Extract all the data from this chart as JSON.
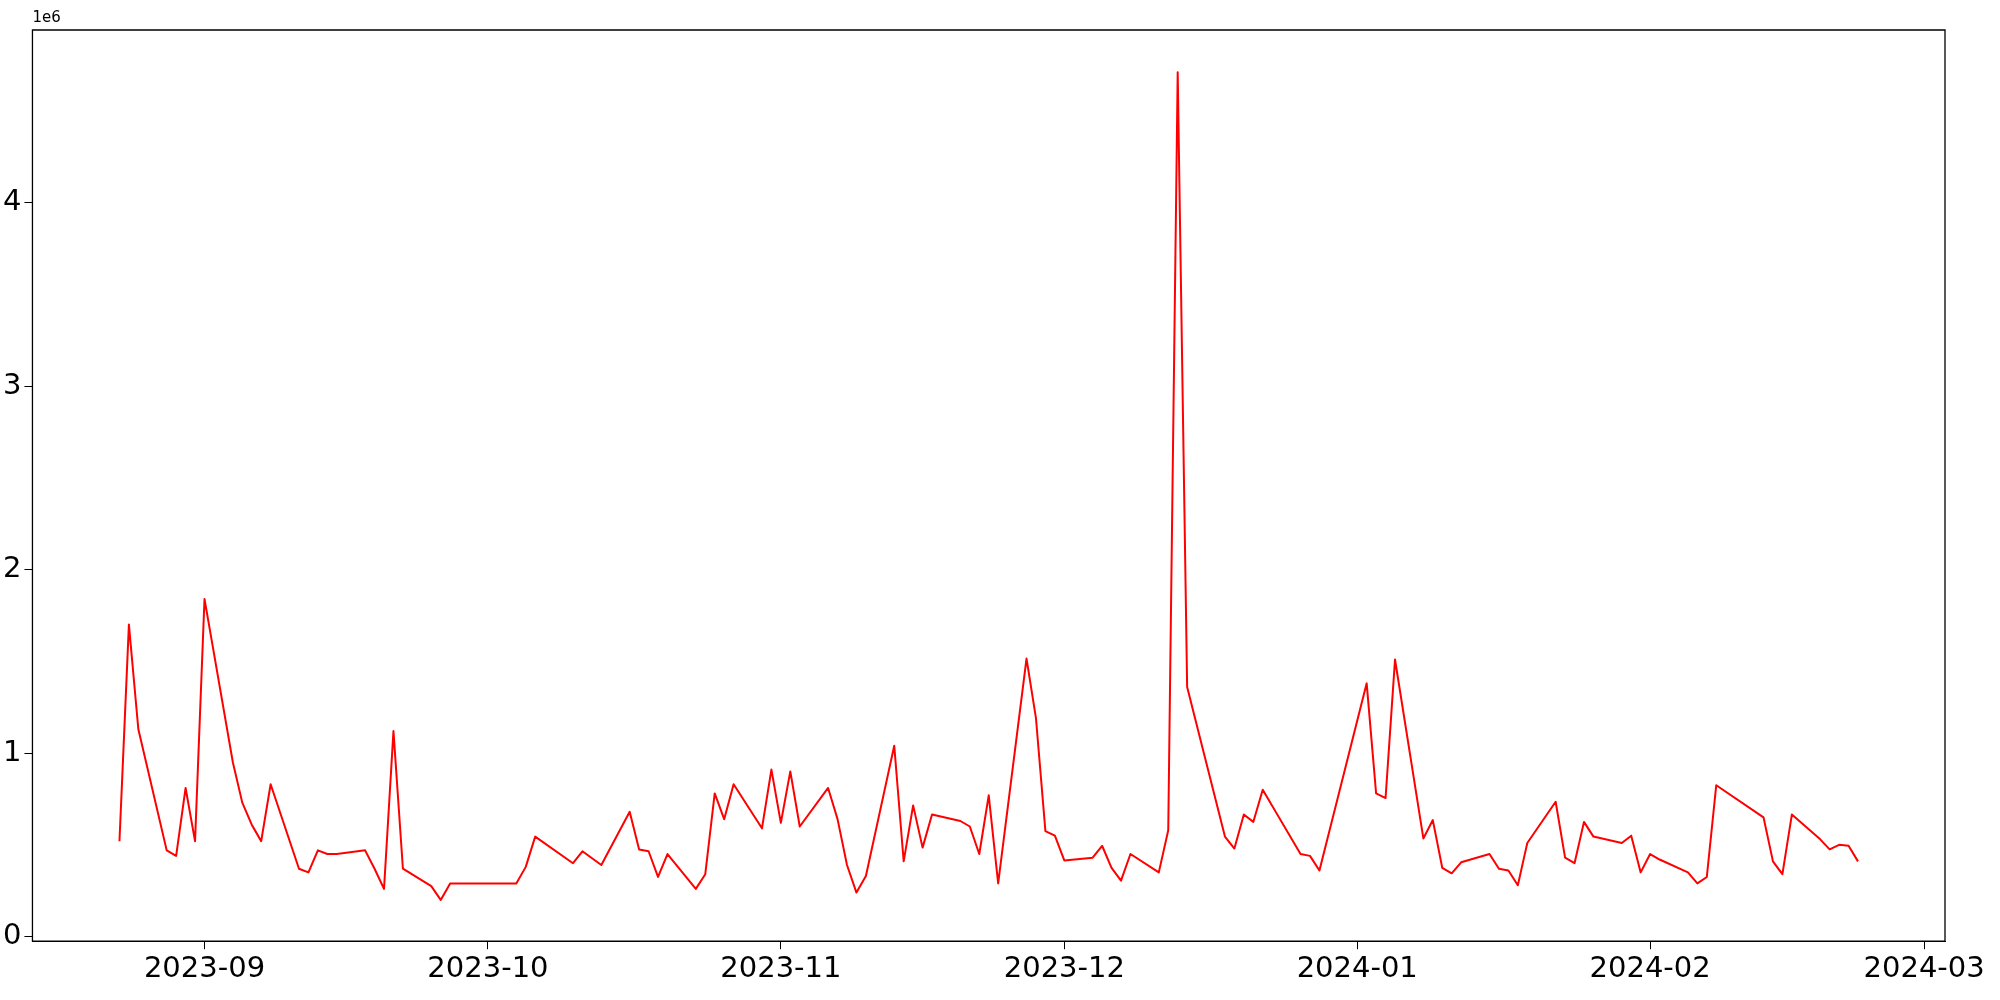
{
  "chart_data": {
    "type": "line",
    "annotations": [
      "1e6"
    ],
    "x": [
      "2023-08-23",
      "2023-08-24",
      "2023-08-25",
      "2023-08-28",
      "2023-08-29",
      "2023-08-30",
      "2023-08-31",
      "2023-09-01",
      "2023-09-04",
      "2023-09-05",
      "2023-09-06",
      "2023-09-07",
      "2023-09-08",
      "2023-09-11",
      "2023-09-12",
      "2023-09-13",
      "2023-09-14",
      "2023-09-15",
      "2023-09-18",
      "2023-09-19",
      "2023-09-20",
      "2023-09-21",
      "2023-09-22",
      "2023-09-25",
      "2023-09-26",
      "2023-09-27",
      "2023-10-04",
      "2023-10-05",
      "2023-10-06",
      "2023-10-10",
      "2023-10-11",
      "2023-10-13",
      "2023-10-16",
      "2023-10-17",
      "2023-10-18",
      "2023-10-19",
      "2023-10-20",
      "2023-10-23",
      "2023-10-24",
      "2023-10-25",
      "2023-10-26",
      "2023-10-27",
      "2023-10-30",
      "2023-10-31",
      "2023-11-01",
      "2023-11-02",
      "2023-11-03",
      "2023-11-06",
      "2023-11-07",
      "2023-11-08",
      "2023-11-09",
      "2023-11-10",
      "2023-11-13",
      "2023-11-14",
      "2023-11-15",
      "2023-11-16",
      "2023-11-17",
      "2023-11-20",
      "2023-11-21",
      "2023-11-22",
      "2023-11-23",
      "2023-11-24",
      "2023-11-27",
      "2023-11-28",
      "2023-11-29",
      "2023-11-30",
      "2023-12-01",
      "2023-12-04",
      "2023-12-05",
      "2023-12-06",
      "2023-12-07",
      "2023-12-08",
      "2023-12-11",
      "2023-12-12",
      "2023-12-13",
      "2023-12-14",
      "2023-12-18",
      "2023-12-19",
      "2023-12-20",
      "2023-12-21",
      "2023-12-22",
      "2023-12-26",
      "2023-12-27",
      "2023-12-28",
      "2024-01-02",
      "2024-01-03",
      "2024-01-04",
      "2024-01-05",
      "2024-01-08",
      "2024-01-09",
      "2024-01-10",
      "2024-01-11",
      "2024-01-12",
      "2024-01-15",
      "2024-01-16",
      "2024-01-17",
      "2024-01-18",
      "2024-01-19",
      "2024-01-22",
      "2024-01-23",
      "2024-01-24",
      "2024-01-25",
      "2024-01-26",
      "2024-01-29",
      "2024-01-30",
      "2024-01-31",
      "2024-02-01",
      "2024-02-02",
      "2024-02-05",
      "2024-02-06",
      "2024-02-07",
      "2024-02-08",
      "2024-02-13",
      "2024-02-14",
      "2024-02-15",
      "2024-02-16",
      "2024-02-19",
      "2024-02-20",
      "2024-02-21",
      "2024-02-22",
      "2024-02-23"
    ],
    "series": [
      {
        "color": "#ff0000",
        "values": [
          0.52,
          1.7,
          1.13,
          0.47,
          0.44,
          0.81,
          0.52,
          1.84,
          0.95,
          0.73,
          0.61,
          0.52,
          0.83,
          0.37,
          0.35,
          0.47,
          0.45,
          0.45,
          0.47,
          0.37,
          0.26,
          1.12,
          0.37,
          0.275,
          0.2,
          0.29,
          0.29,
          0.38,
          0.545,
          0.4,
          0.465,
          0.39,
          0.68,
          0.475,
          0.465,
          0.325,
          0.45,
          0.26,
          0.34,
          0.78,
          0.64,
          0.83,
          0.59,
          0.91,
          0.62,
          0.9,
          0.6,
          0.81,
          0.64,
          0.39,
          0.24,
          0.33,
          1.04,
          0.41,
          0.715,
          0.485,
          0.665,
          0.63,
          0.6,
          0.45,
          0.77,
          0.29,
          1.515,
          1.19,
          0.575,
          0.55,
          0.415,
          0.43,
          0.495,
          0.375,
          0.305,
          0.45,
          0.35,
          0.58,
          4.71,
          1.36,
          0.545,
          0.48,
          0.665,
          0.625,
          0.8,
          0.45,
          0.44,
          0.36,
          1.38,
          0.78,
          0.755,
          1.51,
          0.535,
          0.635,
          0.375,
          0.345,
          0.405,
          0.45,
          0.37,
          0.36,
          0.28,
          0.51,
          0.735,
          0.43,
          0.4,
          0.625,
          0.545,
          0.51,
          0.55,
          0.35,
          0.45,
          0.42,
          0.35,
          0.29,
          0.325,
          0.825,
          0.65,
          0.41,
          0.34,
          0.665,
          0.53,
          0.475,
          0.5,
          0.495,
          0.41
        ]
      }
    ],
    "xlim": [
      "2023-08-13T19:00",
      "2024-03-03T05:00"
    ],
    "xticks": [
      "2023-09",
      "2023-10",
      "2023-11",
      "2023-12",
      "2024-01",
      "2024-02",
      "2024-03"
    ],
    "ylim": [
      -0.025,
      4.94
    ],
    "yticks": [
      0,
      1,
      2,
      3,
      4
    ],
    "marker": "none",
    "line_style": "solid",
    "legend": false,
    "grid": false
  }
}
